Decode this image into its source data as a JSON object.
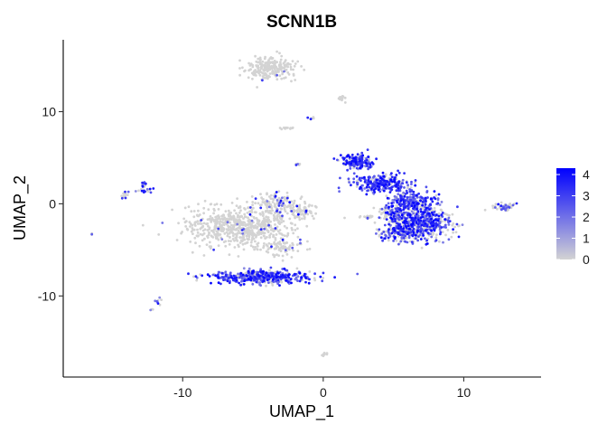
{
  "chart_data": {
    "type": "scatter",
    "title": "SCNN1B",
    "xlabel": "UMAP_1",
    "ylabel": "UMAP_2",
    "xlim": [
      -18.5,
      15.5
    ],
    "ylim": [
      -18.8,
      17.8
    ],
    "x_ticks": [
      -10,
      0,
      10
    ],
    "y_ticks": [
      -10,
      0,
      10
    ],
    "grid": false,
    "legend": {
      "placement": "right",
      "type": "colorbar",
      "ticks": [
        0,
        1,
        2,
        3,
        4
      ],
      "range": [
        0,
        4.3
      ],
      "low_color": "#D3D3D3",
      "high_color": "#0000FF"
    },
    "point_color_low": "#D3D3D3",
    "point_color_high": "#0000FF",
    "clusters": [
      {
        "cx": -3.8,
        "cy": 14.7,
        "rx": 1.6,
        "ry": 1.1,
        "n": 230,
        "expr": 0.01
      },
      {
        "cx": 1.4,
        "cy": 11.4,
        "rx": 0.25,
        "ry": 0.35,
        "n": 14,
        "expr": 0.1
      },
      {
        "cx": -0.9,
        "cy": 9.2,
        "rx": 0.2,
        "ry": 0.15,
        "n": 6,
        "expr": 0.1
      },
      {
        "cx": -2.7,
        "cy": 8.2,
        "rx": 0.5,
        "ry": 0.15,
        "n": 14,
        "expr": 0.05
      },
      {
        "cx": -1.8,
        "cy": 4.2,
        "rx": 0.2,
        "ry": 0.2,
        "n": 6,
        "expr": 0.3
      },
      {
        "cx": -12.8,
        "cy": 2.2,
        "rx": 0.25,
        "ry": 0.45,
        "n": 14,
        "expr": 0.4
      },
      {
        "cx": -14.1,
        "cy": 0.9,
        "rx": 0.3,
        "ry": 0.6,
        "n": 14,
        "expr": 0.5
      },
      {
        "cx": -12.7,
        "cy": 1.4,
        "rx": 0.7,
        "ry": 0.3,
        "n": 16,
        "expr": 0.4
      },
      {
        "cx": -16.5,
        "cy": -3.3,
        "rx": 0.1,
        "ry": 0.15,
        "n": 3,
        "expr": 0.5
      },
      {
        "cx": -11.8,
        "cy": -10.6,
        "rx": 0.2,
        "ry": 0.5,
        "n": 8,
        "expr": 0.5
      },
      {
        "cx": -12.2,
        "cy": -11.5,
        "rx": 0.1,
        "ry": 0.1,
        "n": 3,
        "expr": 0.3
      },
      {
        "cx": 0.1,
        "cy": -16.3,
        "rx": 0.2,
        "ry": 0.25,
        "n": 8,
        "expr": 0.0
      },
      {
        "cx": -6.0,
        "cy": -2.5,
        "rx": 3.3,
        "ry": 2.0,
        "n": 650,
        "expr": 0.03
      },
      {
        "cx": -3.3,
        "cy": 0.0,
        "rx": 1.4,
        "ry": 1.2,
        "n": 130,
        "expr": 0.15
      },
      {
        "cx": -1.6,
        "cy": -0.8,
        "rx": 0.9,
        "ry": 0.8,
        "n": 60,
        "expr": 0.05
      },
      {
        "cx": -3.0,
        "cy": -4.8,
        "rx": 1.3,
        "ry": 0.7,
        "n": 70,
        "expr": 0.08
      },
      {
        "cx": -4.3,
        "cy": -7.9,
        "rx": 3.2,
        "ry": 0.65,
        "n": 420,
        "expr": 0.75
      },
      {
        "cx": 2.4,
        "cy": 4.6,
        "rx": 1.0,
        "ry": 0.7,
        "n": 150,
        "expr": 0.85
      },
      {
        "cx": 4.2,
        "cy": 2.2,
        "rx": 1.8,
        "ry": 0.9,
        "n": 260,
        "expr": 0.8
      },
      {
        "cx": 6.3,
        "cy": 0.2,
        "rx": 1.5,
        "ry": 1.1,
        "n": 260,
        "expr": 0.72
      },
      {
        "cx": 6.8,
        "cy": -2.2,
        "rx": 2.0,
        "ry": 1.6,
        "n": 560,
        "expr": 0.6
      },
      {
        "cx": 5.4,
        "cy": -3.1,
        "rx": 1.1,
        "ry": 0.9,
        "n": 130,
        "expr": 0.45
      },
      {
        "cx": 4.8,
        "cy": -1.0,
        "rx": 0.8,
        "ry": 0.6,
        "n": 80,
        "expr": 0.2
      },
      {
        "cx": 3.2,
        "cy": -1.4,
        "rx": 0.6,
        "ry": 0.15,
        "n": 20,
        "expr": 0.05
      },
      {
        "cx": 12.8,
        "cy": -0.3,
        "rx": 0.7,
        "ry": 0.45,
        "n": 55,
        "expr": 0.3
      }
    ]
  }
}
